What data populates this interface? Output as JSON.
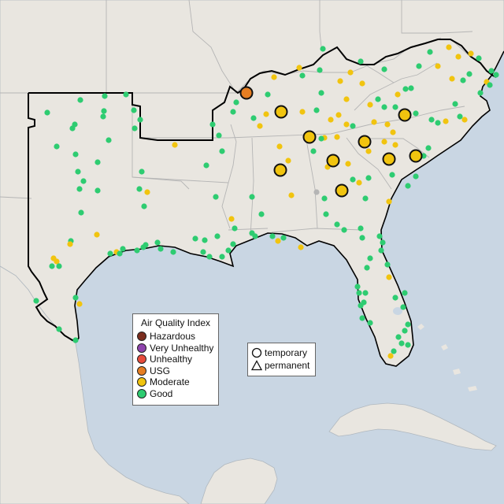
{
  "colors": {
    "ocean": "#c9d6e3",
    "land": "#e9e6e0",
    "boundary": "#b8b8b8",
    "region_outline": "#000000",
    "good": "#2ecc71",
    "moderate": "#f1c40f",
    "usg": "#e67e22",
    "unhealthy": "#e74c3c",
    "very_unhealthy": "#8e44ad",
    "hazardous": "#7b2d1e",
    "unknown": "#b5b5b5"
  },
  "aqi_legend": {
    "title": "Air Quality Index",
    "items": [
      {
        "label": "Hazardous",
        "color_key": "hazardous"
      },
      {
        "label": "Very Unhealthy",
        "color_key": "very_unhealthy"
      },
      {
        "label": "Unhealthy",
        "color_key": "unhealthy"
      },
      {
        "label": "USG",
        "color_key": "usg"
      },
      {
        "label": "Moderate",
        "color_key": "moderate"
      },
      {
        "label": "Good",
        "color_key": "good"
      }
    ]
  },
  "site_legend": {
    "items": [
      {
        "label": "temporary",
        "symbol": "circle-icon"
      },
      {
        "label": "permanent",
        "symbol": "triangle-icon"
      }
    ]
  }
}
